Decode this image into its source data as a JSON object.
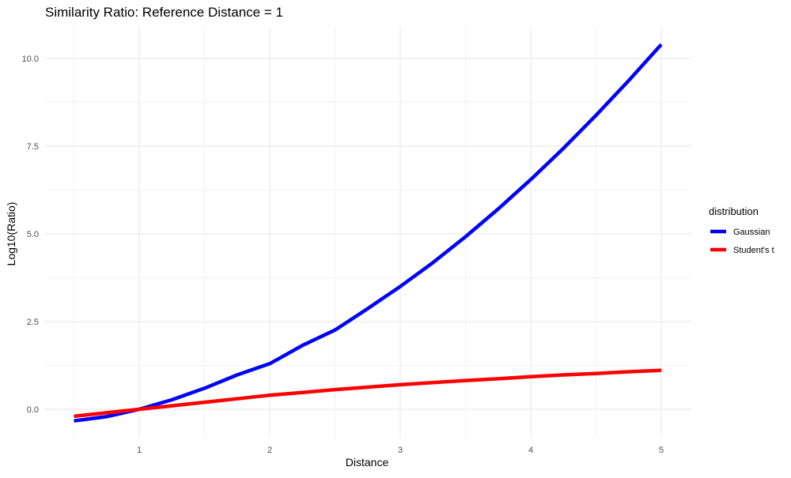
{
  "chart_data": {
    "type": "line",
    "title": "Similarity Ratio: Reference Distance = 1",
    "xlabel": "Distance",
    "ylabel": "Log10(Ratio)",
    "xlim": [
      0.5,
      5.0
    ],
    "ylim": [
      -0.35,
      10.4
    ],
    "x_ticks": [
      1,
      2,
      3,
      4,
      5
    ],
    "x_tick_labels": [
      "1",
      "2",
      "3",
      "4",
      "5"
    ],
    "y_ticks": [
      0,
      2.5,
      5,
      7.5,
      10
    ],
    "y_tick_labels": [
      "0.0",
      "2.5",
      "5.0",
      "7.5",
      "10.0"
    ],
    "grid": true,
    "legend": {
      "title": "distribution",
      "position": "right"
    },
    "x": [
      0.5,
      0.75,
      1.0,
      1.25,
      1.5,
      1.75,
      2.0,
      2.25,
      2.5,
      2.75,
      3.0,
      3.25,
      3.5,
      3.75,
      4.0,
      4.25,
      4.5,
      4.75,
      5.0
    ],
    "series": [
      {
        "name": "Gaussian",
        "color": "#0000ff",
        "values": [
          -0.33,
          -0.21,
          0.0,
          0.27,
          0.6,
          0.98,
          1.3,
          1.82,
          2.26,
          2.87,
          3.5,
          4.18,
          4.92,
          5.71,
          6.55,
          7.44,
          8.38,
          9.37,
          10.4
        ]
      },
      {
        "name": "Student's t",
        "color": "#ff0000",
        "values": [
          -0.2,
          -0.1,
          0.0,
          0.1,
          0.2,
          0.3,
          0.4,
          0.48,
          0.56,
          0.63,
          0.7,
          0.76,
          0.82,
          0.87,
          0.93,
          0.98,
          1.02,
          1.07,
          1.11
        ]
      }
    ]
  }
}
